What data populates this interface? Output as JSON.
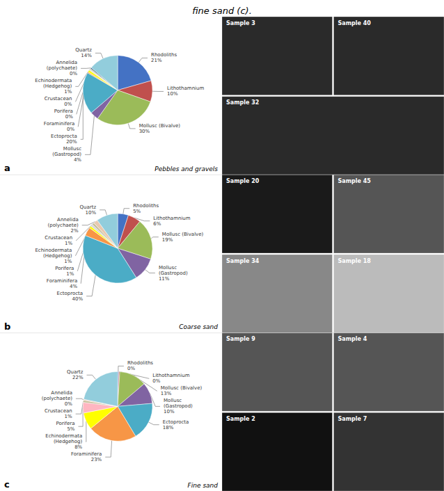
{
  "title": "fine sand (c).",
  "chart_data": [
    {
      "type": "pie",
      "title": "a",
      "subtitle": "Pebbles and gravels",
      "categories": [
        "Rhodoliths\n21%",
        "Lithothamnium\n10%",
        "Mollusc (Bivalve)\n30%",
        "Mollusc\n(Gastropod)\n4%",
        "Ectoprocta\n20%",
        "Foraminifera\n0%",
        "Echinodermata\n(Hedgehog)\n1%",
        "Porifera\n0%",
        "Crustacean\n0%",
        "Annelida\n(polychaete)\n0%",
        "Quartz\n14%"
      ],
      "values": [
        21,
        10,
        30,
        4,
        20,
        0.5,
        1,
        0.5,
        0.5,
        0.5,
        14
      ],
      "colors": [
        "#4472C4",
        "#C0504D",
        "#9BBB59",
        "#8064A2",
        "#4BACC6",
        "#F79646",
        "#FFFF00",
        "#D9D9D9",
        "#C4BD97",
        "#1F497D",
        "#92CDDC"
      ],
      "annotations": [
        [
          {
            "text": "Sample 3",
            "color": "#2a2a2a"
          },
          {
            "text": "Sample 40",
            "color": "#2a2a2a"
          }
        ],
        [
          {
            "text": "Sample 32",
            "color": "#2a2a2a"
          }
        ]
      ]
    },
    {
      "type": "pie",
      "title": "b",
      "subtitle": "Coarse sand",
      "categories": [
        "Rhodoliths\n5%",
        "Lithothamnium\n6%",
        "Mollusc (Bivalve)\n19%",
        "Mollusc\n(Gastropod)\n11%",
        "Ectoprocta\n40%",
        "Foraminifera\n4%",
        "Echinodermata\n(Hedgehog)\n1%",
        "Porifera\n1%",
        "Crustacean\n1%",
        "Annelida\n(polychaete)\n2%",
        "Quartz\n10%"
      ],
      "values": [
        5,
        6,
        19,
        11,
        40,
        4,
        1,
        1,
        1,
        2,
        10
      ],
      "colors": [
        "#4472C4",
        "#C0504D",
        "#9BBB59",
        "#8064A2",
        "#4BACC6",
        "#F79646",
        "#FFFF00",
        "#D9D9D9",
        "#C4BD97",
        "#E8C9B0",
        "#92CDDC"
      ],
      "annotations": [
        [
          {
            "text": "Sample 20",
            "color": "#1a1a1a"
          },
          {
            "text": "Sample 45",
            "color": "#555555"
          }
        ],
        [
          {
            "text": "Sample 34",
            "color": "#888888"
          },
          {
            "text": "Sample 18",
            "color": "#bbbbbb"
          }
        ]
      ]
    },
    {
      "type": "pie",
      "title": "c",
      "subtitle": "Fine sand",
      "categories": [
        "Rhodoliths\n0%",
        "Lithothamnium\n0%",
        "Mollusc (Bivalve)\n13%",
        "Mollusc\n(Gastropod)\n10%",
        "Ectoprocta\n18%",
        "Foraminifera\n23%",
        "Echinodermata\n(Hedgehog)\n8%",
        "Porifera\n5%",
        "Crustacean\n1%",
        "Annelida\n(polychaete)\n0%",
        "Quartz\n22%"
      ],
      "values": [
        0.5,
        0.5,
        13,
        10,
        18,
        23,
        8,
        5,
        1,
        0.5,
        22
      ],
      "colors": [
        "#4472C4",
        "#C0504D",
        "#9BBB59",
        "#8064A2",
        "#4BACC6",
        "#F79646",
        "#FFFF00",
        "#FFB6C1",
        "#C4BD97",
        "#E8C9B0",
        "#92CDDC"
      ],
      "annotations": [
        [
          {
            "text": "Sample 9",
            "color": "#555555"
          },
          {
            "text": "Sample 4",
            "color": "#555555"
          }
        ],
        [
          {
            "text": "Sample 2",
            "color": "#111111"
          },
          {
            "text": "Sample 7",
            "color": "#333333"
          }
        ]
      ]
    }
  ]
}
